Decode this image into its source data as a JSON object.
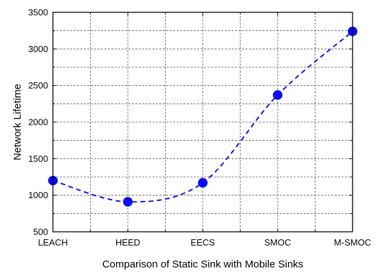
{
  "chart_data": {
    "type": "line",
    "title": "",
    "xlabel": "Comparison of Static Sink with Mobile Sinks",
    "ylabel": "Network Lifetime",
    "categories": [
      "LEACH",
      "HEED",
      "EECS",
      "SMOC",
      "M-SMOC"
    ],
    "series": [
      {
        "values": [
          1200,
          910,
          1170,
          2370,
          3240
        ]
      }
    ],
    "ylim": [
      500,
      3500
    ],
    "yticks": [
      500,
      1000,
      1500,
      2000,
      2500,
      3000,
      3500
    ],
    "line_style": "dashed smooth",
    "marker": "filled circle",
    "grid": true,
    "minor_grid": true,
    "legend": "none",
    "colors": {
      "series": "#1515dd",
      "marker": "#0d0df2",
      "grid": "#555555",
      "axes": "#000000"
    }
  }
}
